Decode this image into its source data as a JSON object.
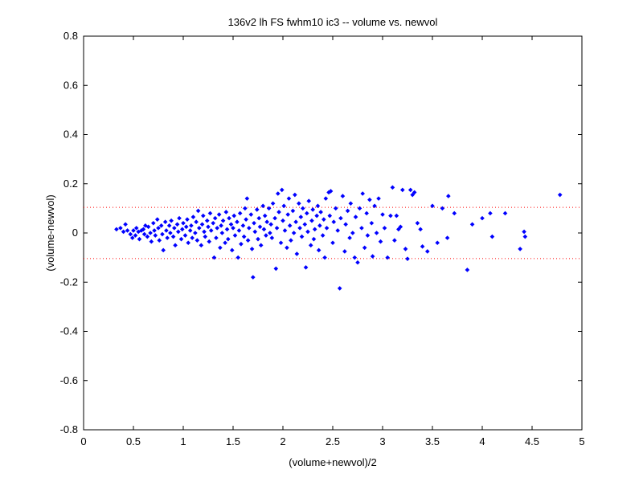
{
  "chart_data": {
    "type": "scatter",
    "title": "136v2 lh FS fwhm10 ic3 -- volume vs. newvol",
    "xlabel": "(volume+newvol)/2",
    "ylabel": "(volume-newvol)",
    "xlim": [
      0,
      5
    ],
    "ylim": [
      -0.8,
      0.8
    ],
    "xticks": [
      "0",
      "0.5",
      "1",
      "1.5",
      "2",
      "2.5",
      "3",
      "3.5",
      "4",
      "4.5",
      "5"
    ],
    "yticks": [
      "-0.8",
      "-0.6",
      "-0.4",
      "-0.2",
      "0",
      "0.2",
      "0.4",
      "0.6",
      "0.8"
    ],
    "grid": false,
    "marker_color": "#0000ff",
    "reference_line_color": "#ff0000",
    "reference_lines": [
      0.104,
      -0.104
    ],
    "series": [
      {
        "marker": "diamond",
        "points": [
          [
            0.33,
            0.015
          ],
          [
            0.37,
            0.02
          ],
          [
            0.4,
            0.005
          ],
          [
            0.42,
            0.035
          ],
          [
            0.44,
            0.01
          ],
          [
            0.47,
            -0.005
          ],
          [
            0.49,
            -0.02
          ],
          [
            0.5,
            0.01
          ],
          [
            0.52,
            -0.01
          ],
          [
            0.53,
            0.02
          ],
          [
            0.55,
            0.005
          ],
          [
            0.56,
            -0.025
          ],
          [
            0.58,
            0.01
          ],
          [
            0.6,
            0.015
          ],
          [
            0.61,
            -0.005
          ],
          [
            0.62,
            0.03
          ],
          [
            0.64,
            -0.015
          ],
          [
            0.65,
            0.025
          ],
          [
            0.67,
            0.0
          ],
          [
            0.68,
            -0.035
          ],
          [
            0.7,
            0.04
          ],
          [
            0.71,
            0.01
          ],
          [
            0.72,
            -0.01
          ],
          [
            0.74,
            0.055
          ],
          [
            0.75,
            0.02
          ],
          [
            0.76,
            -0.03
          ],
          [
            0.78,
            0.03
          ],
          [
            0.79,
            -0.005
          ],
          [
            0.8,
            -0.07
          ],
          [
            0.82,
            0.045
          ],
          [
            0.83,
            0.01
          ],
          [
            0.84,
            -0.02
          ],
          [
            0.86,
            0.03
          ],
          [
            0.87,
            0.0
          ],
          [
            0.88,
            0.05
          ],
          [
            0.9,
            -0.015
          ],
          [
            0.91,
            0.02
          ],
          [
            0.92,
            -0.05
          ],
          [
            0.94,
            0.035
          ],
          [
            0.95,
            0.005
          ],
          [
            0.96,
            0.06
          ],
          [
            0.98,
            -0.025
          ],
          [
            0.99,
            0.015
          ],
          [
            1.0,
            0.04
          ],
          [
            1.02,
            -0.01
          ],
          [
            1.03,
            0.025
          ],
          [
            1.04,
            0.055
          ],
          [
            1.05,
            -0.04
          ],
          [
            1.07,
            0.01
          ],
          [
            1.08,
            0.03
          ],
          [
            1.09,
            -0.02
          ],
          [
            1.1,
            0.065
          ],
          [
            1.12,
            0.0
          ],
          [
            1.13,
            0.045
          ],
          [
            1.14,
            -0.03
          ],
          [
            1.15,
            0.09
          ],
          [
            1.16,
            0.02
          ],
          [
            1.18,
            -0.05
          ],
          [
            1.19,
            0.035
          ],
          [
            1.2,
            0.07
          ],
          [
            1.21,
            0.005
          ],
          [
            1.22,
            -0.015
          ],
          [
            1.24,
            0.05
          ],
          [
            1.25,
            0.025
          ],
          [
            1.26,
            -0.035
          ],
          [
            1.27,
            0.08
          ],
          [
            1.28,
            0.01
          ],
          [
            1.3,
            0.04
          ],
          [
            1.31,
            -0.1
          ],
          [
            1.32,
            0.06
          ],
          [
            1.33,
            -0.02
          ],
          [
            1.34,
            0.02
          ],
          [
            1.36,
            0.075
          ],
          [
            1.37,
            -0.06
          ],
          [
            1.38,
            0.03
          ],
          [
            1.39,
            0.0
          ],
          [
            1.4,
            0.05
          ],
          [
            1.42,
            -0.04
          ],
          [
            1.43,
            0.085
          ],
          [
            1.44,
            0.015
          ],
          [
            1.45,
            -0.025
          ],
          [
            1.46,
            0.06
          ],
          [
            1.48,
            0.035
          ],
          [
            1.49,
            -0.07
          ],
          [
            1.5,
            0.02
          ],
          [
            1.51,
            0.07
          ],
          [
            1.52,
            -0.01
          ],
          [
            1.54,
            0.045
          ],
          [
            1.55,
            -0.1
          ],
          [
            1.56,
            0.01
          ],
          [
            1.57,
            0.08
          ],
          [
            1.58,
            -0.045
          ],
          [
            1.6,
            0.03
          ],
          [
            1.61,
            -0.015
          ],
          [
            1.62,
            0.1
          ],
          [
            1.63,
            0.055
          ],
          [
            1.64,
            0.14
          ],
          [
            1.65,
            -0.03
          ],
          [
            1.66,
            0.02
          ],
          [
            1.68,
            0.075
          ],
          [
            1.69,
            -0.065
          ],
          [
            1.7,
            -0.18
          ],
          [
            1.71,
            0.04
          ],
          [
            1.72,
            0.005
          ],
          [
            1.74,
            0.095
          ],
          [
            1.75,
            -0.025
          ],
          [
            1.76,
            0.06
          ],
          [
            1.77,
            0.025
          ],
          [
            1.78,
            -0.05
          ],
          [
            1.8,
            0.11
          ],
          [
            1.81,
            0.015
          ],
          [
            1.82,
            0.07
          ],
          [
            1.83,
            -0.01
          ],
          [
            1.84,
            0.045
          ],
          [
            1.86,
            0.1
          ],
          [
            1.87,
            0.0
          ],
          [
            1.88,
            0.035
          ],
          [
            1.89,
            -0.02
          ],
          [
            1.9,
            0.12
          ],
          [
            1.92,
            0.06
          ],
          [
            1.93,
            -0.145
          ],
          [
            1.94,
            0.02
          ],
          [
            1.95,
            0.16
          ],
          [
            1.96,
            0.085
          ],
          [
            1.98,
            -0.04
          ],
          [
            1.99,
            0.175
          ],
          [
            2.0,
            0.05
          ],
          [
            2.01,
            0.11
          ],
          [
            2.02,
            0.01
          ],
          [
            2.04,
            -0.06
          ],
          [
            2.05,
            0.075
          ],
          [
            2.06,
            0.14
          ],
          [
            2.07,
            0.03
          ],
          [
            2.08,
            -0.03
          ],
          [
            2.1,
            0.09
          ],
          [
            2.11,
            0.0
          ],
          [
            2.12,
            0.155
          ],
          [
            2.13,
            0.045
          ],
          [
            2.14,
            -0.085
          ],
          [
            2.16,
            0.12
          ],
          [
            2.17,
            0.02
          ],
          [
            2.18,
            0.065
          ],
          [
            2.19,
            -0.015
          ],
          [
            2.2,
            0.1
          ],
          [
            2.22,
            0.035
          ],
          [
            2.23,
            -0.14
          ],
          [
            2.24,
            0.08
          ],
          [
            2.25,
            0.005
          ],
          [
            2.26,
            0.13
          ],
          [
            2.28,
            -0.05
          ],
          [
            2.29,
            0.05
          ],
          [
            2.3,
            0.095
          ],
          [
            2.31,
            -0.025
          ],
          [
            2.32,
            0.015
          ],
          [
            2.34,
            0.07
          ],
          [
            2.35,
            0.11
          ],
          [
            2.36,
            -0.07
          ],
          [
            2.37,
            0.03
          ],
          [
            2.38,
            0.085
          ],
          [
            2.4,
            -0.01
          ],
          [
            2.41,
            0.055
          ],
          [
            2.42,
            -0.1
          ],
          [
            2.43,
            0.14
          ],
          [
            2.44,
            0.02
          ],
          [
            2.46,
            0.165
          ],
          [
            2.47,
            0.07
          ],
          [
            2.48,
            0.17
          ],
          [
            2.5,
            -0.04
          ],
          [
            2.51,
            0.045
          ],
          [
            2.53,
            0.1
          ],
          [
            2.55,
            0.01
          ],
          [
            2.57,
            -0.225
          ],
          [
            2.58,
            0.06
          ],
          [
            2.6,
            0.15
          ],
          [
            2.62,
            -0.075
          ],
          [
            2.63,
            0.035
          ],
          [
            2.65,
            0.09
          ],
          [
            2.67,
            -0.02
          ],
          [
            2.68,
            0.12
          ],
          [
            2.7,
            0.0
          ],
          [
            2.72,
            -0.1
          ],
          [
            2.73,
            0.065
          ],
          [
            2.75,
            -0.12
          ],
          [
            2.77,
            0.1
          ],
          [
            2.79,
            0.02
          ],
          [
            2.8,
            0.16
          ],
          [
            2.82,
            -0.06
          ],
          [
            2.84,
            0.08
          ],
          [
            2.85,
            -0.01
          ],
          [
            2.87,
            0.135
          ],
          [
            2.89,
            0.04
          ],
          [
            2.9,
            -0.095
          ],
          [
            2.92,
            0.11
          ],
          [
            2.94,
            0.0
          ],
          [
            2.96,
            0.14
          ],
          [
            2.98,
            -0.035
          ],
          [
            3.0,
            0.075
          ],
          [
            3.02,
            0.02
          ],
          [
            3.05,
            -0.1
          ],
          [
            3.08,
            0.07
          ],
          [
            3.1,
            0.185
          ],
          [
            3.12,
            -0.03
          ],
          [
            3.14,
            0.07
          ],
          [
            3.16,
            0.015
          ],
          [
            3.18,
            0.025
          ],
          [
            3.2,
            0.175
          ],
          [
            3.23,
            -0.065
          ],
          [
            3.25,
            -0.105
          ],
          [
            3.28,
            0.175
          ],
          [
            3.3,
            0.155
          ],
          [
            3.32,
            0.165
          ],
          [
            3.35,
            0.04
          ],
          [
            3.38,
            0.015
          ],
          [
            3.4,
            -0.055
          ],
          [
            3.45,
            -0.075
          ],
          [
            3.5,
            0.11
          ],
          [
            3.55,
            -0.04
          ],
          [
            3.6,
            0.1
          ],
          [
            3.65,
            -0.02
          ],
          [
            3.66,
            0.15
          ],
          [
            3.72,
            0.08
          ],
          [
            3.85,
            -0.15
          ],
          [
            3.9,
            0.035
          ],
          [
            4.0,
            0.06
          ],
          [
            4.08,
            0.08
          ],
          [
            4.1,
            -0.015
          ],
          [
            4.23,
            0.08
          ],
          [
            4.38,
            -0.065
          ],
          [
            4.42,
            0.005
          ],
          [
            4.43,
            -0.015
          ],
          [
            4.78,
            0.155
          ]
        ]
      }
    ]
  }
}
